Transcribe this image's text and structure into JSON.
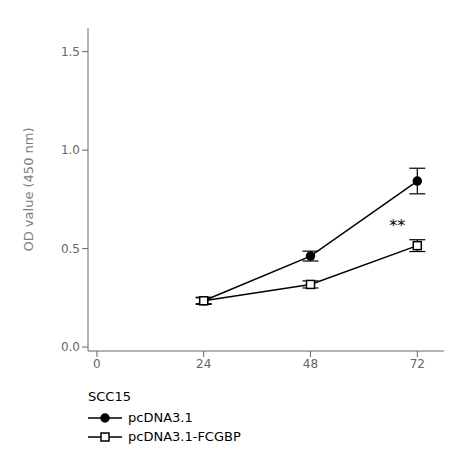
{
  "chart_data": {
    "type": "line",
    "y_label": "OD value (450 nm)",
    "x": [
      24,
      48,
      72
    ],
    "series": [
      {
        "name": "pcDNA3.1",
        "color": "#000000",
        "marker": "circle",
        "line_style": "solid",
        "values": [
          0.235,
          0.462,
          0.843
        ],
        "errors": [
          0.018,
          0.025,
          0.065
        ]
      },
      {
        "name": "pcDNA3.1-FCGBP",
        "color": "#000000",
        "marker": "open-square",
        "line_style": "solid",
        "values": [
          0.235,
          0.318,
          0.515
        ],
        "errors": [
          0.015,
          0.018,
          0.03
        ]
      }
    ],
    "xlim": [
      -2,
      78
    ],
    "xticks": [
      0,
      24,
      48,
      72
    ],
    "ylim": [
      -0.02,
      1.62
    ],
    "yticks": [
      {
        "value": 0,
        "label": "0.0"
      },
      0.5,
      {
        "value": 1,
        "label": "1.0"
      },
      1.5
    ],
    "annotations": [
      {
        "text": "**",
        "x": 67.5,
        "y": 0.565
      }
    ],
    "legend_title": "SCC15",
    "legend": "bottom",
    "grid": false
  }
}
